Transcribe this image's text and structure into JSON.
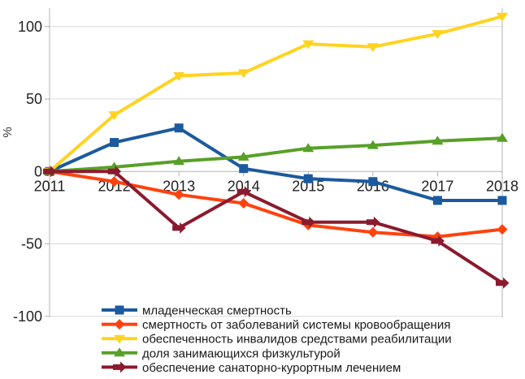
{
  "chart_data": {
    "type": "line",
    "title": "",
    "xlabel": "",
    "ylabel": "%",
    "x": [
      2011,
      2012,
      2013,
      2014,
      2015,
      2016,
      2017,
      2018
    ],
    "yticks": [
      100,
      50,
      0,
      -50,
      -100
    ],
    "ylim": [
      -100,
      113
    ],
    "grid": true,
    "legend_position": "bottom-left",
    "colors": {
      "grid": "#d9d9d9",
      "axis": "#b3b3b3",
      "tick_text": "#222222"
    },
    "series": [
      {
        "name": "младенческая смертность",
        "color": "#1B5A9E",
        "marker": "square",
        "values": [
          0,
          20,
          30,
          2,
          -5,
          -7,
          -20,
          -20
        ]
      },
      {
        "name": "смертность от заболеваний системы кровообращения",
        "color": "#FF420E",
        "marker": "diamond",
        "values": [
          0,
          -7,
          -16,
          -22,
          -37,
          -42,
          -45,
          -40
        ]
      },
      {
        "name": "обеспеченность инвалидов средствами реабилитации",
        "color": "#FFD320",
        "marker": "triangle-down",
        "values": [
          0,
          39,
          66,
          68,
          88,
          86,
          95,
          107
        ]
      },
      {
        "name": "доля занимающихся физкультурой",
        "color": "#58A028",
        "marker": "triangle-up",
        "values": [
          0,
          3,
          7,
          10,
          16,
          18,
          21,
          23
        ]
      },
      {
        "name": "обеспечение санаторно-курортным лечением",
        "color": "#8B1A2E",
        "marker": "arrow-right",
        "values": [
          0,
          0,
          -39,
          -14,
          -35,
          -35,
          -48,
          -77
        ]
      }
    ]
  }
}
